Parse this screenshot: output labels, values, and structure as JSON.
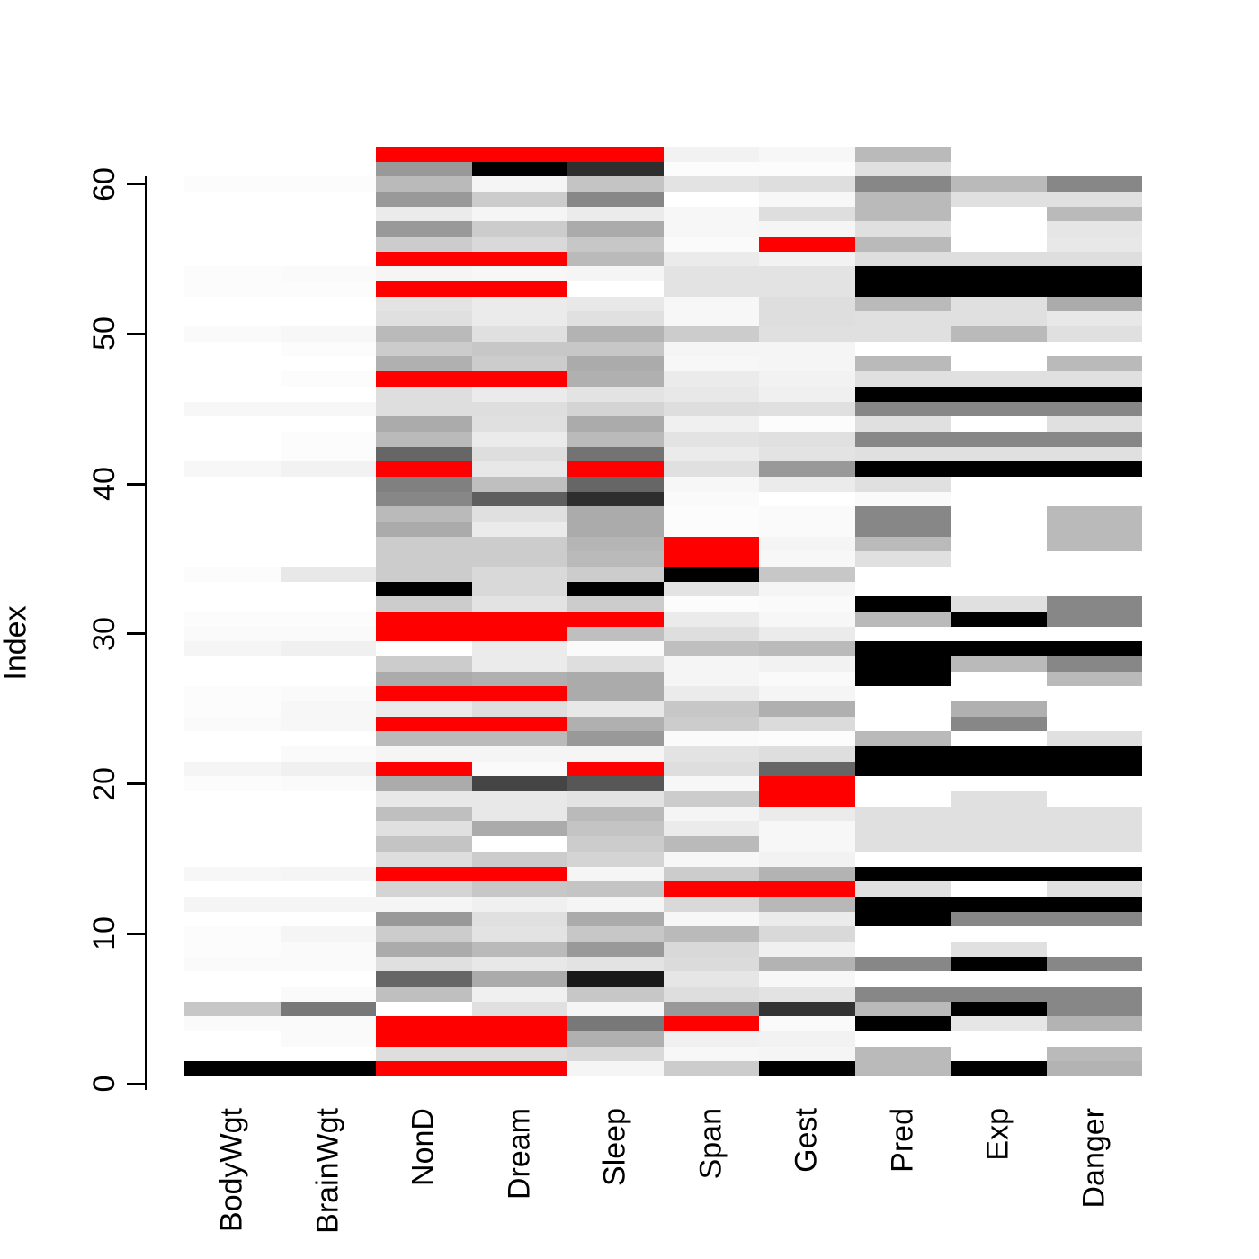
{
  "chart_data": {
    "type": "heatmap",
    "title": "",
    "xlabel": "",
    "ylabel": "Index",
    "columns": [
      "BodyWgt",
      "BrainWgt",
      "NonD",
      "Dream",
      "Sleep",
      "Span",
      "Gest",
      "Pred",
      "Exp",
      "Danger"
    ],
    "n_rows": 62,
    "row_order": "row index 1 is at the bottom of the plot, index 62 at the top",
    "y_ticks": [
      0,
      10,
      20,
      30,
      40,
      50,
      60
    ],
    "legend_position": "none",
    "grid": false,
    "na_color": "#ff0000",
    "value_encoding": "cell intensity 0 = white (low value) to 1 = black (high value); \"NA\" = missing value drawn in red",
    "rows": [
      [
        1,
        1,
        "NA",
        "NA",
        0.04,
        0.2,
        1,
        0.27,
        1,
        0.3
      ],
      [
        0,
        0,
        0.13,
        0.13,
        0.15,
        0.03,
        0.04,
        0.27,
        0,
        0.27
      ],
      [
        0,
        0.02,
        "NA",
        "NA",
        0.31,
        0.06,
        0.05,
        0,
        0,
        0
      ],
      [
        0.02,
        0.02,
        "NA",
        "NA",
        0.53,
        "NA",
        0.02,
        1,
        0.1,
        0.3
      ],
      [
        0.22,
        0.53,
        0,
        0.12,
        0.04,
        0.4,
        0.8,
        0.27,
        1,
        0.47
      ],
      [
        0,
        0.02,
        0.25,
        0.06,
        0.22,
        0.13,
        0.11,
        0.47,
        0.47,
        0.47
      ],
      [
        0,
        0,
        0.6,
        0.33,
        0.9,
        0.1,
        0.03,
        0,
        0,
        0
      ],
      [
        0.02,
        0.02,
        0.12,
        0.09,
        0.11,
        0.14,
        0.3,
        0.47,
        1,
        0.47
      ],
      [
        0.01,
        0.02,
        0.33,
        0.27,
        0.4,
        0.15,
        0.06,
        0,
        0.12,
        0
      ],
      [
        0.01,
        0.04,
        0.2,
        0.11,
        0.22,
        0.27,
        0.15,
        0,
        0,
        0
      ],
      [
        0,
        0,
        0.4,
        0.12,
        0.33,
        0.03,
        0.08,
        1,
        0.47,
        0.47
      ],
      [
        0.04,
        0.04,
        0.04,
        0.06,
        0.04,
        0.15,
        0.28,
        1,
        1,
        1
      ],
      [
        0,
        0,
        0.17,
        0.22,
        0.23,
        "NA",
        "NA",
        0.12,
        0,
        0.12
      ],
      [
        0.03,
        0.04,
        "NA",
        "NA",
        0.04,
        0.2,
        0.3,
        1,
        1,
        1
      ],
      [
        0,
        0,
        0.13,
        0.2,
        0.17,
        0.03,
        0.05,
        0,
        0,
        0
      ],
      [
        0,
        0,
        0.23,
        0,
        0.2,
        0.27,
        0.03,
        0.12,
        0.12,
        0.12
      ],
      [
        0,
        0,
        0.12,
        0.33,
        0.23,
        0.08,
        0.03,
        0.12,
        0.12,
        0.12
      ],
      [
        0,
        0,
        0.25,
        0.09,
        0.27,
        0.04,
        0.08,
        0.12,
        0.12,
        0.12
      ],
      [
        0,
        0,
        0.09,
        0.09,
        0.11,
        0.2,
        "NA",
        0,
        0.12,
        0
      ],
      [
        0.01,
        0.02,
        0.33,
        0.73,
        0.66,
        0.03,
        "NA",
        0,
        0,
        0
      ],
      [
        0.04,
        0.06,
        "NA",
        0.02,
        "NA",
        0.13,
        0.6,
        1,
        1,
        1
      ],
      [
        0,
        0.02,
        0.04,
        0.04,
        0.04,
        0.11,
        0.13,
        1,
        1,
        1
      ],
      [
        0,
        0,
        0.27,
        0.27,
        0.4,
        0.02,
        0.01,
        0.27,
        0,
        0.12
      ],
      [
        0.02,
        0.03,
        "NA",
        "NA",
        0.31,
        0.2,
        0.14,
        0,
        0.47,
        0
      ],
      [
        0.01,
        0.03,
        0.08,
        0.13,
        0.09,
        0.22,
        0.31,
        0,
        0.31,
        0
      ],
      [
        0.01,
        0.02,
        "NA",
        "NA",
        0.33,
        0.08,
        0.04,
        0,
        0,
        0
      ],
      [
        0,
        0,
        0.33,
        0.31,
        0.33,
        0.04,
        0.02,
        1,
        0,
        0.27
      ],
      [
        0,
        0,
        0.2,
        0.08,
        0.13,
        0.04,
        0.05,
        1,
        0.27,
        0.47
      ],
      [
        0.04,
        0.06,
        0,
        0.08,
        0.02,
        0.25,
        0.27,
        1,
        1,
        1
      ],
      [
        0.02,
        0.02,
        "NA",
        "NA",
        0.25,
        0.13,
        0.08,
        0,
        0,
        0
      ],
      [
        0.01,
        0.01,
        "NA",
        "NA",
        "NA",
        0.08,
        0.03,
        0.27,
        1,
        0.47
      ],
      [
        0,
        0,
        0.2,
        0.11,
        0.2,
        0.01,
        0.02,
        1,
        0.12,
        0.47
      ],
      [
        0,
        0,
        1,
        0.15,
        1,
        0.11,
        0.04,
        0,
        0,
        0
      ],
      [
        0.01,
        0.09,
        0.2,
        0.15,
        0.2,
        1,
        0.22,
        0,
        0,
        0
      ],
      [
        0,
        0,
        0.2,
        0.2,
        0.27,
        "NA",
        0.03,
        0.12,
        0,
        0
      ],
      [
        0,
        0,
        0.2,
        0.2,
        0.29,
        "NA",
        0.04,
        0.27,
        0,
        0.27
      ],
      [
        0,
        0,
        0.33,
        0.08,
        0.33,
        0.01,
        0.02,
        0.47,
        0,
        0.27
      ],
      [
        0,
        0,
        0.27,
        0.12,
        0.33,
        0.01,
        0.02,
        0.47,
        0,
        0.27
      ],
      [
        0,
        0,
        0.47,
        0.63,
        0.82,
        0.02,
        0,
        0.02,
        0,
        0
      ],
      [
        0,
        0,
        0.5,
        0.25,
        0.6,
        0.03,
        0.08,
        0.12,
        0,
        0
      ],
      [
        0.03,
        0.05,
        "NA",
        0.09,
        "NA",
        0.12,
        0.4,
        1,
        1,
        1
      ],
      [
        0,
        0.01,
        0.6,
        0.13,
        0.55,
        0.08,
        0.11,
        0.12,
        0.12,
        0.12
      ],
      [
        0,
        0.01,
        0.27,
        0.08,
        0.27,
        0.11,
        0.12,
        0.47,
        0.47,
        0.47
      ],
      [
        0,
        0,
        0.33,
        0.12,
        0.33,
        0.06,
        0.01,
        0.12,
        0,
        0.12
      ],
      [
        0.03,
        0.03,
        0.13,
        0.13,
        0.17,
        0.13,
        0.12,
        0.47,
        0.47,
        0.47
      ],
      [
        0,
        0,
        0.13,
        0.08,
        0.11,
        0.09,
        0.06,
        1,
        1,
        1
      ],
      [
        0,
        0.01,
        "NA",
        "NA",
        0.31,
        0.08,
        0.05,
        0.12,
        0.12,
        0.12
      ],
      [
        0,
        0,
        0.31,
        0.2,
        0.33,
        0.03,
        0.04,
        0.27,
        0,
        0.27
      ],
      [
        0,
        0.01,
        0.2,
        0.22,
        0.22,
        0.04,
        0.04,
        0,
        0,
        0
      ],
      [
        0.02,
        0.03,
        0.27,
        0.12,
        0.3,
        0.2,
        0.12,
        0.12,
        0.27,
        0.12
      ],
      [
        0,
        0,
        0.12,
        0.08,
        0.12,
        0.03,
        0.13,
        0.12,
        0.12,
        0.09
      ],
      [
        0,
        0,
        0.11,
        0.08,
        0.09,
        0.03,
        0.13,
        0.27,
        0.12,
        0.33
      ],
      [
        0.01,
        0.01,
        "NA",
        "NA",
        0,
        0.11,
        0.11,
        1,
        1,
        1
      ],
      [
        0.01,
        0.02,
        0.04,
        0.03,
        0.04,
        0.11,
        0.11,
        1,
        1,
        1
      ],
      [
        0,
        0,
        "NA",
        "NA",
        0.27,
        0.08,
        0.05,
        0.13,
        0.13,
        0.13
      ],
      [
        0,
        0,
        0.2,
        0.15,
        0.22,
        0.02,
        "NA",
        0.27,
        0,
        0.09
      ],
      [
        0,
        0,
        0.4,
        0.2,
        0.33,
        0.03,
        0.04,
        0.12,
        0,
        0.1
      ],
      [
        0,
        0,
        0.08,
        0.04,
        0.08,
        0.03,
        0.13,
        0.27,
        0,
        0.27
      ],
      [
        0,
        0,
        0.4,
        0.2,
        0.47,
        0,
        0.03,
        0.27,
        0.12,
        0.12
      ],
      [
        0.01,
        0.01,
        0.27,
        0.04,
        0.23,
        0.11,
        0.13,
        0.47,
        0.27,
        0.47
      ],
      [
        0,
        0,
        0.4,
        1,
        0.82,
        0.01,
        0.01,
        0.12,
        0,
        0
      ],
      [
        0,
        0,
        "NA",
        "NA",
        "NA",
        0.05,
        0.03,
        0.27,
        0,
        0
      ]
    ]
  },
  "y_axis": {
    "label": "Index",
    "tick_labels": [
      "0",
      "10",
      "20",
      "30",
      "40",
      "50",
      "60"
    ]
  },
  "x_axis": {
    "labels": [
      "BodyWgt",
      "BrainWgt",
      "NonD",
      "Dream",
      "Sleep",
      "Span",
      "Gest",
      "Pred",
      "Exp",
      "Danger"
    ]
  }
}
